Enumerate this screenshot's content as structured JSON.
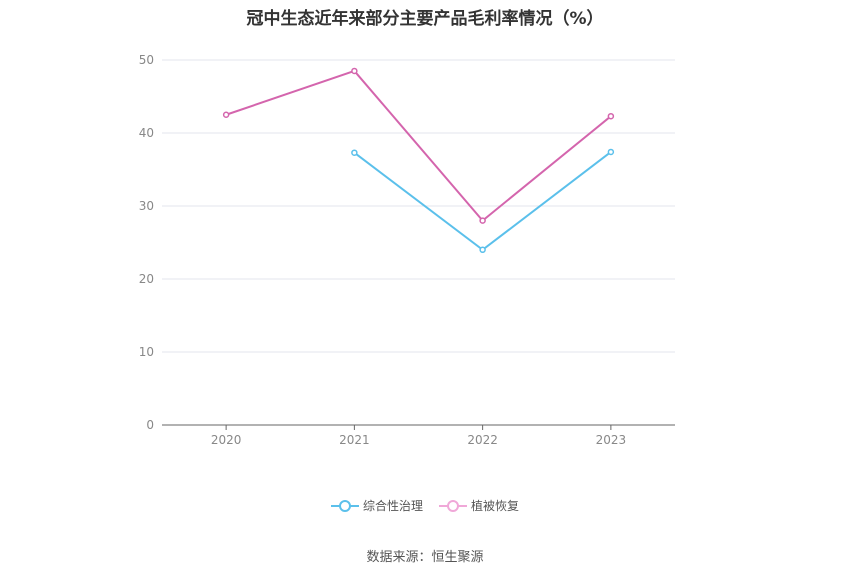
{
  "chart_data": {
    "type": "line",
    "title": "冠中生态近年来部分主要产品毛利率情况（%）",
    "categories": [
      "2020",
      "2021",
      "2022",
      "2023"
    ],
    "ylim": [
      0,
      50
    ],
    "yticks": [
      0,
      10,
      20,
      30,
      40,
      50
    ],
    "grid": true,
    "legend_position": "bottom",
    "series": [
      {
        "name": "综合性治理",
        "color": "#5bc0eb",
        "values": [
          null,
          37.3,
          24.0,
          37.4
        ]
      },
      {
        "name": "植被恢复",
        "color": "#d465ad",
        "values": [
          42.5,
          48.5,
          28.0,
          42.3
        ]
      }
    ]
  },
  "source": "数据来源：恒生聚源"
}
